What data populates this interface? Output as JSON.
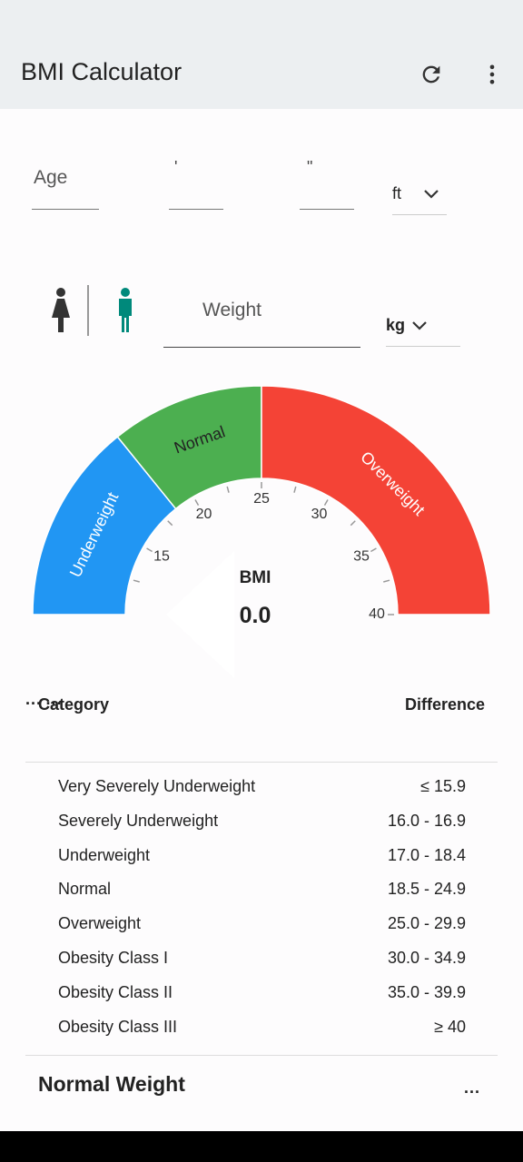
{
  "app": {
    "title": "BMI Calculator"
  },
  "inputs": {
    "age_label": "Age",
    "feet_label": "'",
    "inches_label": "\"",
    "height_unit": "ft",
    "weight_label": "Weight",
    "weight_unit": "kg"
  },
  "colors": {
    "underweight": "#2196f3",
    "normal": "#4caf50",
    "overweight": "#f44336",
    "male_selected": "#00897b"
  },
  "gauge": {
    "min": 10,
    "max": 40,
    "segments": [
      {
        "label": "Underweight",
        "from": 10,
        "to": 18.5
      },
      {
        "label": "Normal",
        "from": 18.5,
        "to": 25
      },
      {
        "label": "Overweight",
        "from": 25,
        "to": 40
      }
    ],
    "ticks": [
      "15",
      "20",
      "25",
      "30",
      "35",
      "40"
    ],
    "title": "BMI",
    "value": "0.0",
    "pointer_value": 0
  },
  "table": {
    "headers": {
      "category": "Category",
      "difference": "Difference"
    },
    "placeholder_left": "...",
    "placeholder_right": "...",
    "rows": [
      {
        "category": "Very Severely Underweight",
        "range": "≤ 15.9"
      },
      {
        "category": "Severely Underweight",
        "range": "16.0 - 16.9"
      },
      {
        "category": "Underweight",
        "range": "17.0 - 18.4"
      },
      {
        "category": "Normal",
        "range": "18.5 - 24.9"
      },
      {
        "category": "Overweight",
        "range": "25.0 - 29.9"
      },
      {
        "category": "Obesity Class I",
        "range": "30.0 - 34.9"
      },
      {
        "category": "Obesity Class II",
        "range": "35.0 - 39.9"
      },
      {
        "category": "Obesity Class III",
        "range": "≥ 40"
      }
    ]
  },
  "result": {
    "label": "Normal Weight",
    "more": "..."
  }
}
